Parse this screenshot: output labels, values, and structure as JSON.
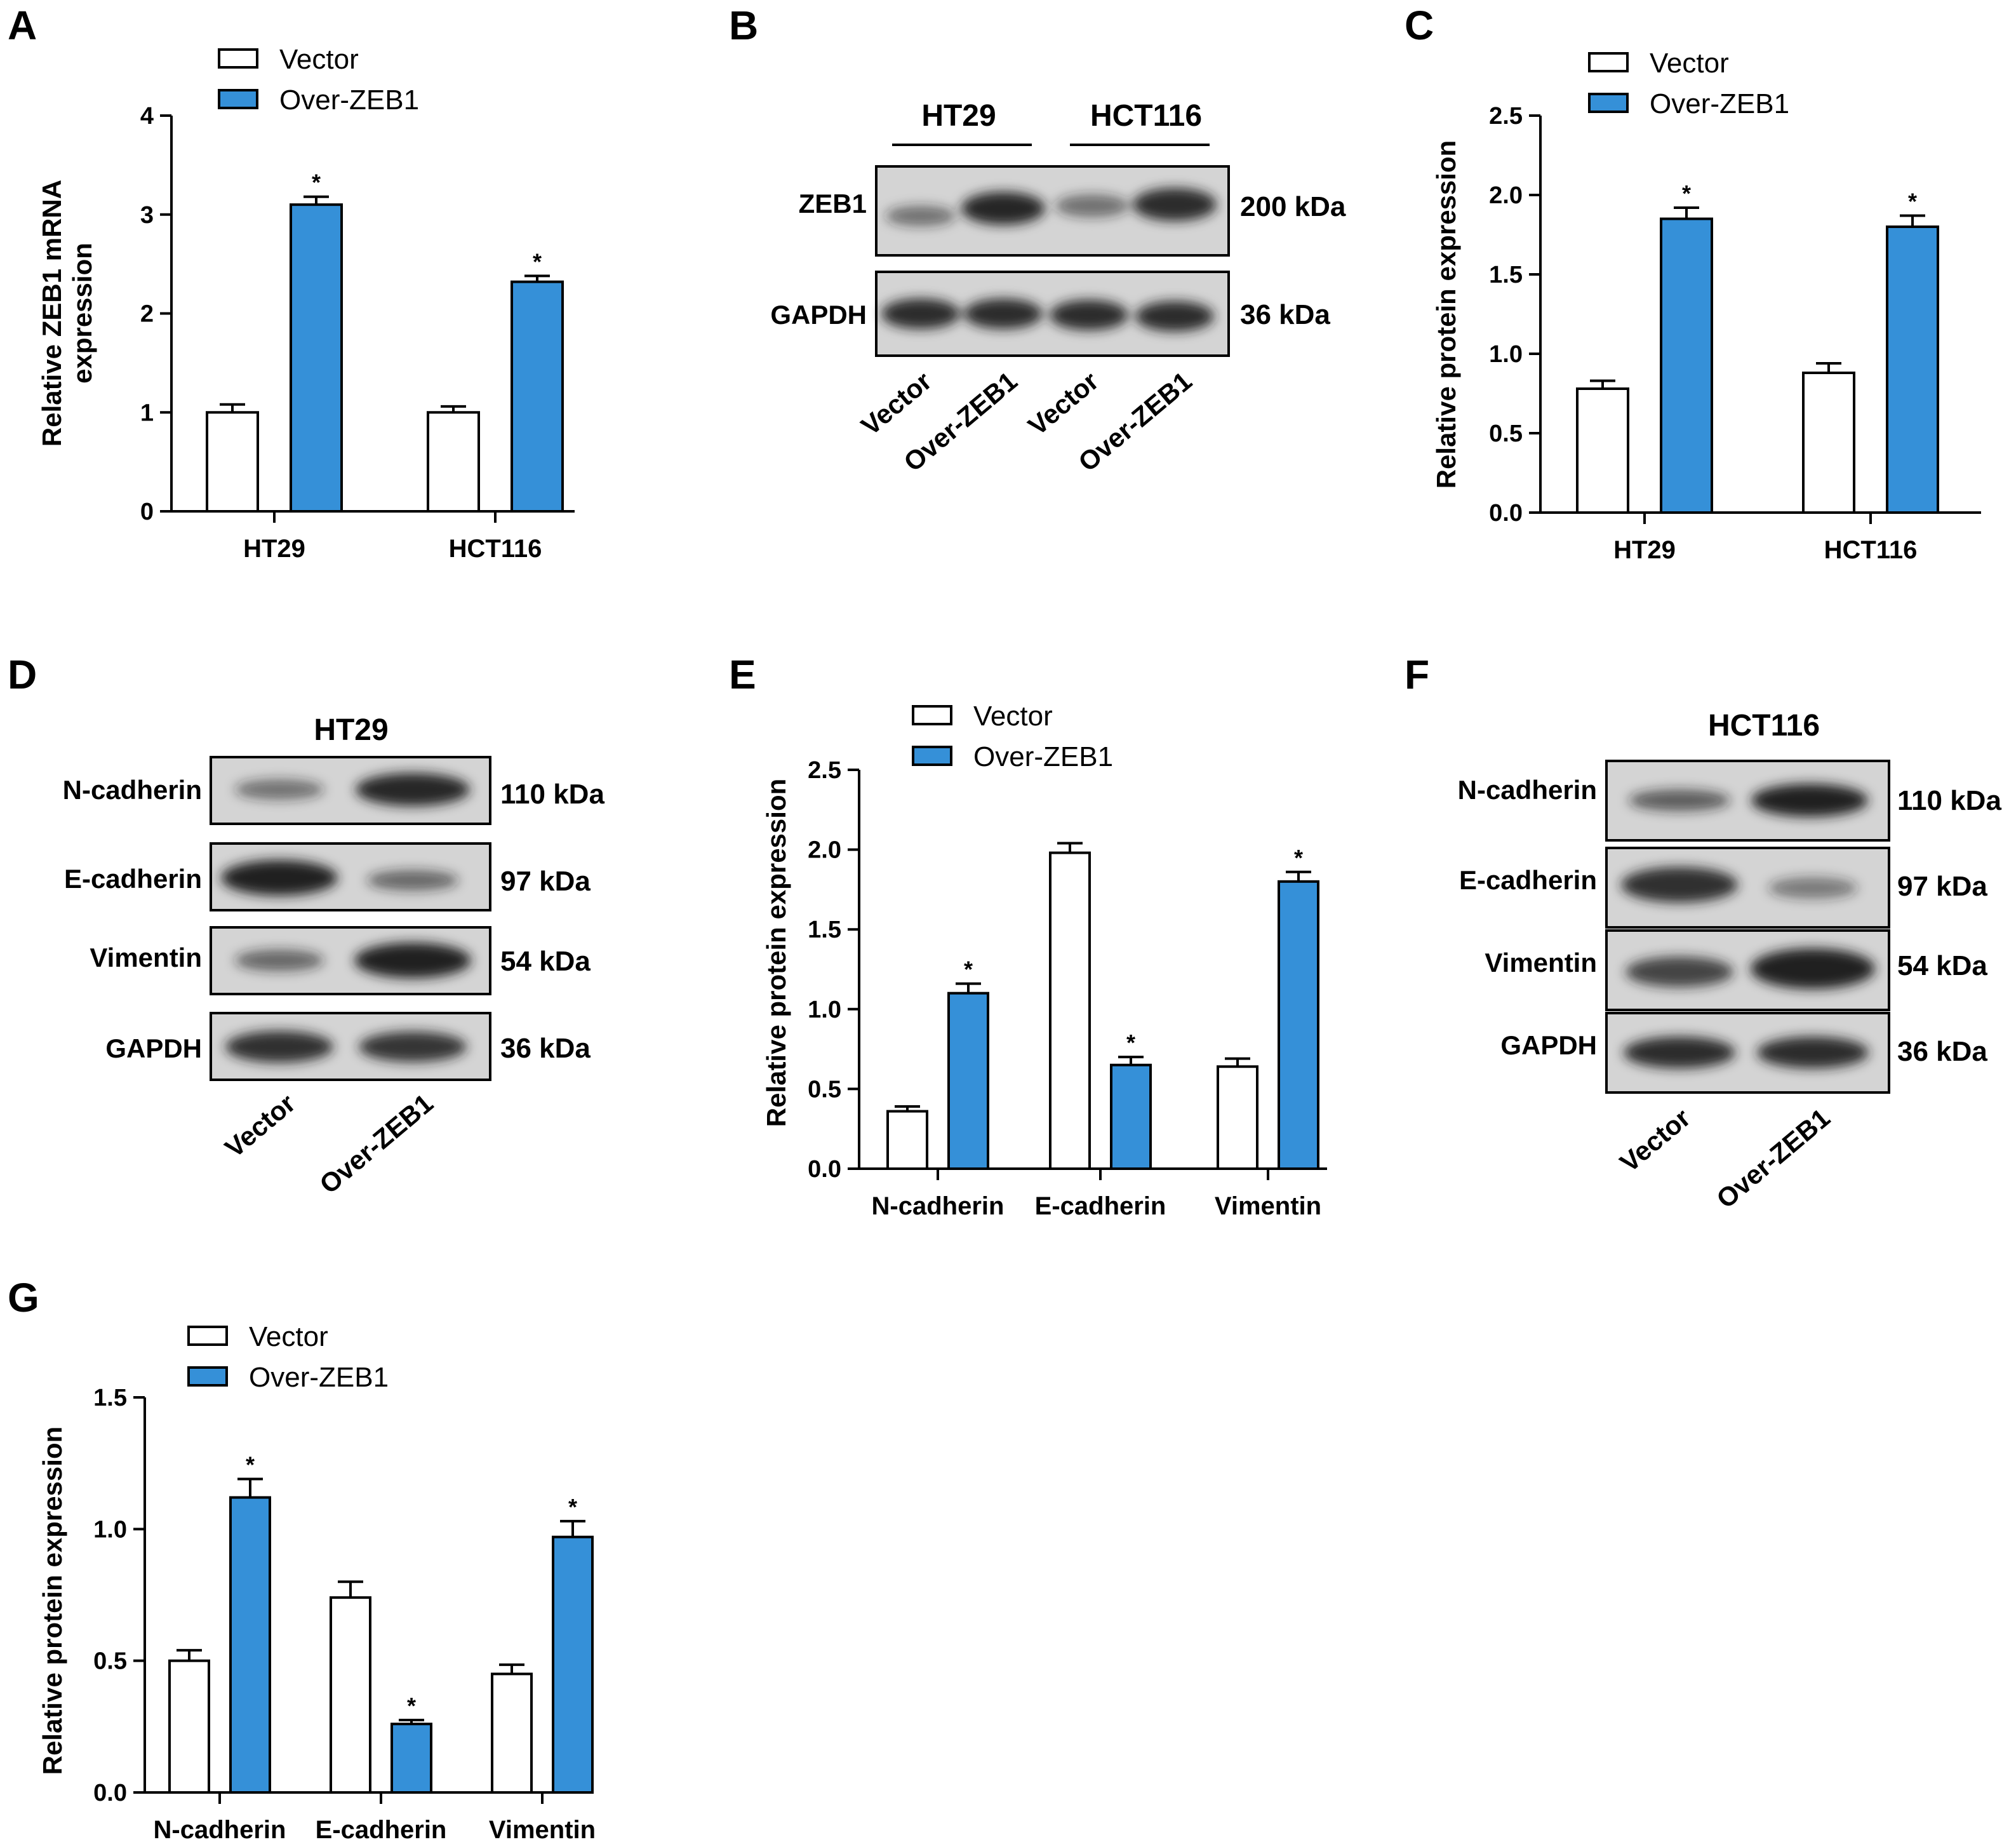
{
  "colors": {
    "vector": "#ffffff",
    "over": "#3590d8",
    "stroke": "#000000",
    "blot_bg": "#d4d4d4",
    "band": "#1e1e1e"
  },
  "panels": {
    "A": "A",
    "B": "B",
    "C": "C",
    "D": "D",
    "E": "E",
    "F": "F",
    "G": "G"
  },
  "legend": {
    "vector": "Vector",
    "over": "Over-ZEB1"
  },
  "chart_data": [
    {
      "id": "A",
      "type": "bar",
      "categories": [
        "HT29",
        "HCT116"
      ],
      "series": [
        {
          "name": "Vector",
          "values": [
            1.0,
            1.0
          ],
          "errors": [
            0.08,
            0.06
          ]
        },
        {
          "name": "Over-ZEB1",
          "values": [
            3.1,
            2.32
          ],
          "errors": [
            0.08,
            0.06
          ]
        }
      ],
      "significance": [
        "",
        "*",
        "",
        "*"
      ],
      "ylabel": [
        "Relative ZEB1 mRNA",
        "expression"
      ],
      "ylim": [
        0,
        4
      ],
      "yticks": [
        0,
        1,
        2,
        3,
        4
      ],
      "ytick_labels": [
        "0",
        "1",
        "2",
        "3",
        "4"
      ]
    },
    {
      "id": "C",
      "type": "bar",
      "categories": [
        "HT29",
        "HCT116"
      ],
      "series": [
        {
          "name": "Vector",
          "values": [
            0.78,
            0.88
          ],
          "errors": [
            0.05,
            0.06
          ]
        },
        {
          "name": "Over-ZEB1",
          "values": [
            1.85,
            1.8
          ],
          "errors": [
            0.07,
            0.07
          ]
        }
      ],
      "significance": [
        "",
        "*",
        "",
        "*"
      ],
      "ylabel": [
        "Relative protein expression"
      ],
      "ylim": [
        0,
        2.5
      ],
      "yticks": [
        0,
        0.5,
        1,
        1.5,
        2,
        2.5
      ],
      "ytick_labels": [
        "0.0",
        "0.5",
        "1.0",
        "1.5",
        "2.0",
        "2.5"
      ]
    },
    {
      "id": "E",
      "type": "bar",
      "categories": [
        "N-cadherin",
        "E-cadherin",
        "Vimentin"
      ],
      "series": [
        {
          "name": "Vector",
          "values": [
            0.36,
            1.98,
            0.64
          ],
          "errors": [
            0.03,
            0.06,
            0.05
          ]
        },
        {
          "name": "Over-ZEB1",
          "values": [
            1.1,
            0.65,
            1.8
          ],
          "errors": [
            0.06,
            0.05,
            0.06
          ]
        }
      ],
      "significance": [
        "",
        "*",
        "",
        "*",
        "",
        "*"
      ],
      "ylabel": [
        "Relative protein expression"
      ],
      "ylim": [
        0,
        2.5
      ],
      "yticks": [
        0,
        0.5,
        1,
        1.5,
        2,
        2.5
      ],
      "ytick_labels": [
        "0.0",
        "0.5",
        "1.0",
        "1.5",
        "2.0",
        "2.5"
      ]
    },
    {
      "id": "G",
      "type": "bar",
      "categories": [
        "N-cadherin",
        "E-cadherin",
        "Vimentin"
      ],
      "series": [
        {
          "name": "Vector",
          "values": [
            0.5,
            0.74,
            0.45
          ],
          "errors": [
            0.04,
            0.06,
            0.035
          ]
        },
        {
          "name": "Over-ZEB1",
          "values": [
            1.12,
            0.26,
            0.97
          ],
          "errors": [
            0.07,
            0.015,
            0.06
          ]
        }
      ],
      "significance": [
        "",
        "*",
        "",
        "*",
        "",
        "*"
      ],
      "ylabel": [
        "Relative protein expression"
      ],
      "ylim": [
        0,
        1.5
      ],
      "yticks": [
        0,
        0.5,
        1,
        1.5
      ],
      "ytick_labels": [
        "0.0",
        "0.5",
        "1.0",
        "1.5"
      ]
    }
  ],
  "blots": {
    "B": {
      "groups": [
        "HT29",
        "HCT116"
      ],
      "rows": [
        {
          "label": "ZEB1",
          "kda": "200 kDa"
        },
        {
          "label": "GAPDH",
          "kda": "36 kDa"
        }
      ],
      "lanes": [
        "Vector",
        "Over-ZEB1",
        "Vector",
        "Over-ZEB1"
      ]
    },
    "D": {
      "title": "HT29",
      "rows": [
        {
          "label": "N-cadherin",
          "kda": "110 kDa"
        },
        {
          "label": "E-cadherin",
          "kda": "97 kDa"
        },
        {
          "label": "Vimentin",
          "kda": "54 kDa"
        },
        {
          "label": "GAPDH",
          "kda": "36 kDa"
        }
      ],
      "lanes": [
        "Vector",
        "Over-ZEB1"
      ]
    },
    "F": {
      "title": "HCT116",
      "rows": [
        {
          "label": "N-cadherin",
          "kda": "110 kDa"
        },
        {
          "label": "E-cadherin",
          "kda": "97 kDa"
        },
        {
          "label": "Vimentin",
          "kda": "54 kDa"
        },
        {
          "label": "GAPDH",
          "kda": "36 kDa"
        }
      ],
      "lanes": [
        "Vector",
        "Over-ZEB1"
      ]
    }
  }
}
